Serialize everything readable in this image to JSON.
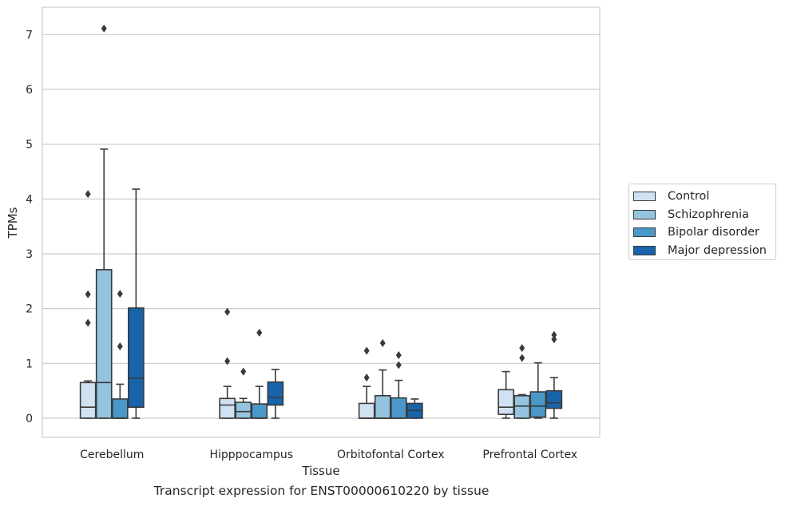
{
  "chart_data": {
    "type": "box",
    "caption": "Transcript expression for ENST00000610220 by tissue",
    "xlabel": "Tissue",
    "ylabel": "TPMs",
    "ylim": [
      -0.35,
      7.5
    ],
    "yticks": [
      "0",
      "1",
      "2",
      "3",
      "4",
      "5",
      "6",
      "7"
    ],
    "categories": [
      "Cerebellum",
      "Hipppocampus",
      "Orbitofontal Cortex",
      "Prefrontal Cortex"
    ],
    "grid": true,
    "legend_position": "right",
    "series": [
      {
        "name": "Control",
        "color": "#d0e1f2",
        "boxes": [
          {
            "min": 0,
            "q1": 0,
            "median": 0.2,
            "q3": 0.65,
            "max": 0.68,
            "outliers": [
              1.74,
              2.26,
              4.09
            ]
          },
          {
            "min": 0,
            "q1": 0,
            "median": 0.24,
            "q3": 0.36,
            "max": 0.58,
            "outliers": [
              1.04,
              1.94
            ]
          },
          {
            "min": 0,
            "q1": 0,
            "median": 0,
            "q3": 0.27,
            "max": 0.58,
            "outliers": [
              0.74,
              1.23
            ]
          },
          {
            "min": 0,
            "q1": 0.07,
            "median": 0.2,
            "q3": 0.52,
            "max": 0.85,
            "outliers": []
          }
        ]
      },
      {
        "name": "Schizophrenia",
        "color": "#94c4df",
        "boxes": [
          {
            "min": 0,
            "q1": 0,
            "median": 0.65,
            "q3": 2.71,
            "max": 4.91,
            "outliers": [
              7.11
            ]
          },
          {
            "min": 0,
            "q1": 0,
            "median": 0.12,
            "q3": 0.29,
            "max": 0.36,
            "outliers": [
              0.85
            ]
          },
          {
            "min": 0,
            "q1": 0,
            "median": 0,
            "q3": 0.41,
            "max": 0.88,
            "outliers": [
              1.37
            ]
          },
          {
            "min": 0,
            "q1": 0,
            "median": 0.22,
            "q3": 0.41,
            "max": 0.43,
            "outliers": [
              1.1,
              1.28
            ]
          }
        ]
      },
      {
        "name": "Bipolar disorder",
        "color": "#4a98c9",
        "boxes": [
          {
            "min": 0,
            "q1": 0,
            "median": 0,
            "q3": 0.35,
            "max": 0.62,
            "outliers": [
              1.31,
              2.27
            ]
          },
          {
            "min": 0,
            "q1": 0,
            "median": 0,
            "q3": 0.26,
            "max": 0.58,
            "outliers": [
              1.56
            ]
          },
          {
            "min": 0,
            "q1": 0,
            "median": 0,
            "q3": 0.37,
            "max": 0.69,
            "outliers": [
              0.97,
              1.15
            ]
          },
          {
            "min": 0,
            "q1": 0.02,
            "median": 0.22,
            "q3": 0.48,
            "max": 1.01,
            "outliers": []
          }
        ]
      },
      {
        "name": "Major depression",
        "color": "#1764ab",
        "boxes": [
          {
            "min": 0,
            "q1": 0.2,
            "median": 0.73,
            "q3": 2.01,
            "max": 4.18,
            "outliers": []
          },
          {
            "min": 0,
            "q1": 0.24,
            "median": 0.38,
            "q3": 0.66,
            "max": 0.89,
            "outliers": []
          },
          {
            "min": 0,
            "q1": 0,
            "median": 0.14,
            "q3": 0.27,
            "max": 0.35,
            "outliers": []
          },
          {
            "min": 0,
            "q1": 0.18,
            "median": 0.28,
            "q3": 0.5,
            "max": 0.74,
            "outliers": [
              1.44,
              1.52
            ]
          }
        ]
      }
    ]
  }
}
